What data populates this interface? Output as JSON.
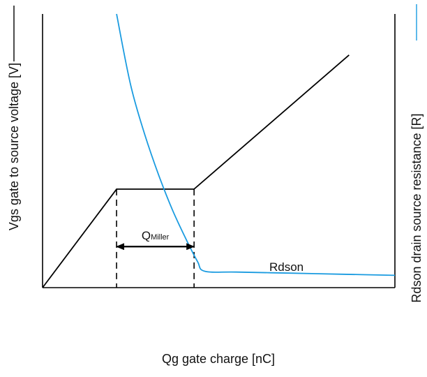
{
  "chart_data": {
    "type": "line",
    "title": "",
    "xlabel": "Qg gate charge [nC]",
    "ylabel_left": "Vgs gate to source voltage [V]",
    "ylabel_right": "Rdson drain source resistance [R]",
    "x_ticks": false,
    "y_ticks": false,
    "grid": false,
    "xlim": [
      0,
      10
    ],
    "ylim_left": [
      0,
      10
    ],
    "ylim_right": [
      0,
      10
    ],
    "series": [
      {
        "name": "",
        "axis": "left",
        "color": "#000000",
        "x": [
          0,
          2.1,
          4.3,
          8.7
        ],
        "y": [
          0,
          3.6,
          3.6,
          8.5
        ]
      },
      {
        "name": "Rdson",
        "axis": "right",
        "color": "#1a9be0",
        "x": [
          2.1,
          2.5,
          2.9,
          3.3,
          3.7,
          4.1,
          4.4,
          4.6,
          5.5,
          7.0,
          8.5,
          10.0
        ],
        "y": [
          10.0,
          7.4,
          5.6,
          4.1,
          2.8,
          1.7,
          0.95,
          0.6,
          0.57,
          0.53,
          0.49,
          0.45
        ]
      }
    ],
    "annotations": [
      {
        "type": "span_arrow",
        "label_main": "Q",
        "label_sub": "Miller",
        "x_start": 2.1,
        "x_end": 4.3,
        "y": 1.5
      },
      {
        "type": "label",
        "text": "Rdson"
      }
    ],
    "dashed_verticals_x": [
      2.1,
      4.3
    ]
  }
}
